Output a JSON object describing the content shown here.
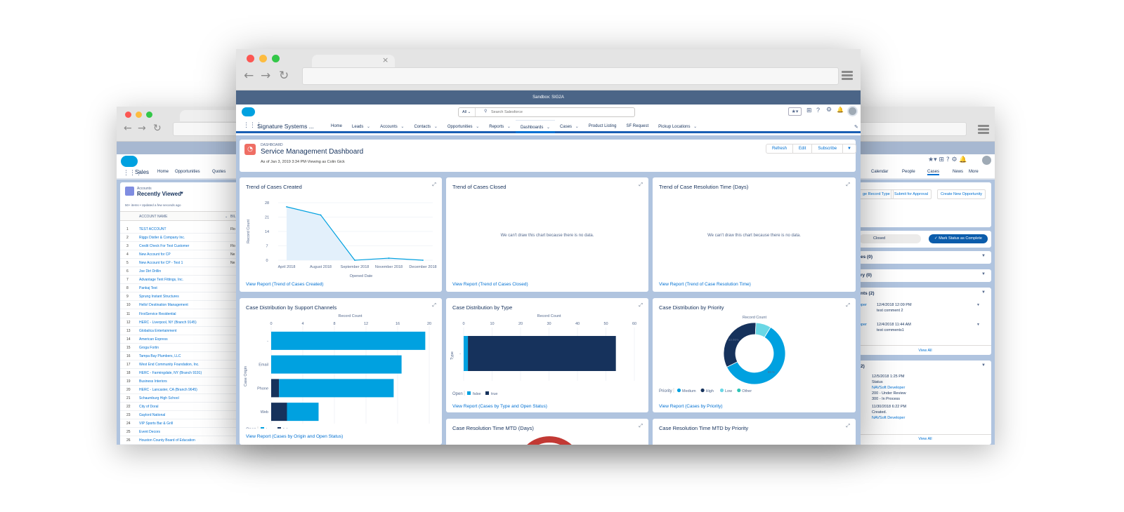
{
  "back_window": {
    "app_name": "Sales",
    "nav": [
      "Home",
      "Opportunities",
      "Quotes"
    ],
    "list_object": "Accounts",
    "list_view": "Recently Viewed",
    "list_meta": "50+ items • Updated a few seconds ago",
    "col_account": "ACCOUNT NAME",
    "col_billing": "BIL",
    "rows": [
      {
        "n": "1",
        "name": "TEST ACCOUNT",
        "bill": "Flo"
      },
      {
        "n": "2",
        "name": "Riggs Distler & Company Inc.",
        "bill": ""
      },
      {
        "n": "3",
        "name": "Credit Check For Test Customer",
        "bill": "Flo"
      },
      {
        "n": "4",
        "name": "New Account for CP",
        "bill": "Ne"
      },
      {
        "n": "5",
        "name": "New Account for CP - Test 1",
        "bill": "Ne"
      },
      {
        "n": "6",
        "name": "Joe Dirt Drillin",
        "bill": ""
      },
      {
        "n": "7",
        "name": "Advantage Tent Fittings, Inc.",
        "bill": ""
      },
      {
        "n": "8",
        "name": "Pankaj Test",
        "bill": ""
      },
      {
        "n": "9",
        "name": "Sprung Instant Structures",
        "bill": ""
      },
      {
        "n": "10",
        "name": "Hello! Destination Management",
        "bill": ""
      },
      {
        "n": "11",
        "name": "FirstService Residential",
        "bill": ""
      },
      {
        "n": "12",
        "name": "HERC - Liverpool, NY (Branch 9145)",
        "bill": ""
      },
      {
        "n": "13",
        "name": "Globalica Entertainment",
        "bill": ""
      },
      {
        "n": "14",
        "name": "American Express",
        "bill": ""
      },
      {
        "n": "15",
        "name": "Groga Fortin",
        "bill": ""
      },
      {
        "n": "16",
        "name": "Tampa Bay Plumbers, LLC",
        "bill": ""
      },
      {
        "n": "17",
        "name": "West End Community Foundation, Inc.",
        "bill": ""
      },
      {
        "n": "18",
        "name": "HERC - Farmingdale, NY (Branch 9191)",
        "bill": ""
      },
      {
        "n": "19",
        "name": "Business Interiors",
        "bill": ""
      },
      {
        "n": "20",
        "name": "HERC - Lancaster, CA (Branch 9645)",
        "bill": ""
      },
      {
        "n": "21",
        "name": "Schaumburg High School",
        "bill": ""
      },
      {
        "n": "22",
        "name": "City of Doral",
        "bill": ""
      },
      {
        "n": "23",
        "name": "Gaylord National",
        "bill": ""
      },
      {
        "n": "24",
        "name": "VIP Sports Bar & Grill",
        "bill": ""
      },
      {
        "n": "25",
        "name": "Event Decors",
        "bill": ""
      },
      {
        "n": "26",
        "name": "Houston County Board of Education",
        "bill": ""
      }
    ],
    "right_nav": [
      "Calendar",
      "People",
      "Cases",
      "News",
      "More"
    ],
    "actions": [
      "ge Record Type",
      "Submit for Approval",
      "Create New Opportunity"
    ],
    "status_value": "Closed",
    "mark_complete": "Mark Status as Complete",
    "sec1": "es (0)",
    "sec2": "ry (0)",
    "sec3": "nts (2)",
    "comments": [
      {
        "who": "oper",
        "date": "12/4/2018 12:09 PM",
        "text": "test comment 2"
      },
      {
        "who": "oper",
        "date": "12/4/2018 11:44 AM",
        "text": "test comments1"
      }
    ],
    "view_all": "View All",
    "sec4": "2)",
    "history": [
      {
        "date": "12/5/2018 1:25 PM",
        "l1": "Status",
        "l2": "NAVSoft Developer",
        "l3": "200 - Under Review",
        "l4": "300 - In Process"
      },
      {
        "date": "11/30/2018 6:22 PM",
        "l1": "Created.",
        "l2": "NAVSoft Developer",
        "l3": "",
        "l4": ""
      }
    ]
  },
  "front_window": {
    "sandbox_banner": "Sandbox: SIG2A",
    "search_scope": "All",
    "search_placeholder": "Search Salesforce",
    "app_name": "Signature Systems ...",
    "nav": [
      {
        "label": "Home",
        "caret": false
      },
      {
        "label": "Leads",
        "caret": true
      },
      {
        "label": "Accounts",
        "caret": true
      },
      {
        "label": "Contacts",
        "caret": true
      },
      {
        "label": "Opportunities",
        "caret": true
      },
      {
        "label": "Reports",
        "caret": true
      },
      {
        "label": "Dashboards",
        "caret": true
      },
      {
        "label": "Cases",
        "caret": true
      },
      {
        "label": "Product Listing",
        "caret": false
      },
      {
        "label": "SF Request",
        "caret": false
      },
      {
        "label": "Pickup Locations",
        "caret": true
      }
    ],
    "dash_label": "DASHBOARD",
    "dash_title": "Service Management Dashboard",
    "dash_meta": "As of Jan 3, 2019 3:34 PM·Viewing as Colin Gick",
    "btn_refresh": "Refresh",
    "btn_edit": "Edit",
    "btn_subscribe": "Subscribe",
    "cards": {
      "c1_title": "Trend of Cases Created",
      "c1_link": "View Report (Trend of Cases Created)",
      "c2_title": "Trend of Cases Closed",
      "c2_link": "View Report (Trend of Cases Closed)",
      "c3_title": "Trend of Case Resolution Time (Days)",
      "c3_link": "View Report (Trend of Case Resolution Time)",
      "nodata": "We can't draw this chart because there is no data.",
      "c4_title": "Case Distribution by Support Channels",
      "c4_link": "View Report (Cases by Origin and Open Status)",
      "c5_title": "Case Distribution by Type",
      "c5_link": "View Report (Cases by Type and Open Status)",
      "c6_title": "Case Distribution by Priority",
      "c6_link": "View Report (Cases by Priority)",
      "c7_title": "Case Resolution Time MTD (Days)",
      "c8_title": "Case Resolution Time MTD by Priority"
    }
  },
  "chart_data": [
    {
      "type": "area",
      "title": "Trend of Cases Created",
      "xlabel": "Opened Date",
      "ylabel": "Record Count",
      "categories": [
        "April 2018",
        "August 2018",
        "September 2018",
        "November 2018",
        "December 2018"
      ],
      "values": [
        26,
        22,
        0,
        1,
        0
      ],
      "ylim": [
        0,
        28
      ],
      "yticks": [
        0,
        7,
        14,
        21,
        28
      ]
    },
    {
      "type": "bar",
      "orientation": "horizontal",
      "title": "Case Distribution by Support Channels",
      "xlabel": "Record Count",
      "ylabel": "Case Origin",
      "categories": [
        "-",
        "Email",
        "Phone",
        "Web"
      ],
      "series": [
        {
          "name": "false",
          "values": [
            0,
            0,
            1,
            2
          ],
          "color": "#16325c"
        },
        {
          "name": "true",
          "values": [
            19.5,
            16.5,
            14.5,
            4
          ],
          "color": "#00a1e0"
        }
      ],
      "xlim": [
        0,
        20
      ],
      "xticks": [
        0,
        4,
        8,
        12,
        16,
        20
      ],
      "legend_title": "Open",
      "legend_labels": [
        "true",
        "false"
      ]
    },
    {
      "type": "bar",
      "orientation": "horizontal",
      "title": "Case Distribution by Type",
      "xlabel": "Record Count",
      "ylabel": "Type",
      "categories": [
        "-"
      ],
      "series": [
        {
          "name": "true",
          "values": [
            1.5
          ],
          "color": "#00a1e0"
        },
        {
          "name": "false",
          "values": [
            52
          ],
          "color": "#16325c"
        }
      ],
      "xlim": [
        0,
        60
      ],
      "xticks": [
        0,
        10,
        20,
        30,
        40,
        50,
        60
      ],
      "legend_title": "Open",
      "legend_labels": [
        "false",
        "true"
      ]
    },
    {
      "type": "pie",
      "title": "Case Distribution by Priority",
      "subtitle": "Record Count",
      "labels": [
        "Medium",
        "High",
        "Low",
        "Other"
      ],
      "values": [
        59,
        33,
        8,
        0
      ],
      "colors": [
        "#00a1e0",
        "#16325c",
        "#6ad7e5",
        "#2ec4b6"
      ],
      "printed_pct": {
        "Medium": "59.%",
        "High": "33.96%"
      },
      "legend_title": "Priority"
    }
  ]
}
